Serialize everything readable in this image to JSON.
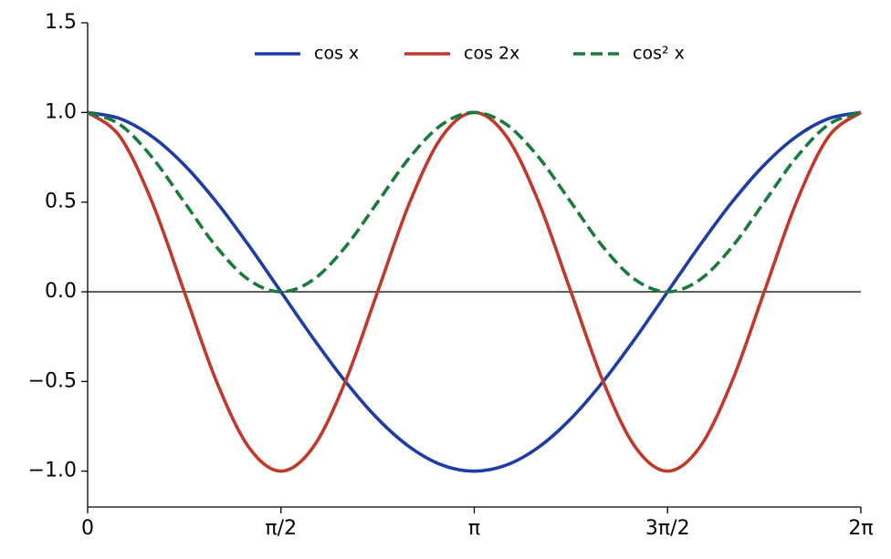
{
  "chart_data": {
    "type": "line",
    "x": [
      0,
      0.2618,
      0.5236,
      0.7854,
      1.0472,
      1.309,
      1.5708,
      1.8326,
      2.0944,
      2.3562,
      2.618,
      2.8798,
      3.1416,
      3.4034,
      3.6652,
      3.927,
      4.1888,
      4.4506,
      4.7124,
      4.9742,
      5.236,
      5.4978,
      5.7596,
      6.0214,
      6.2832
    ],
    "series": [
      {
        "name": "cos x",
        "color": "#1f3ca6",
        "dash": false,
        "values": [
          1,
          0.9659,
          0.866,
          0.7071,
          0.5,
          0.2588,
          0,
          -0.2588,
          -0.5,
          -0.7071,
          -0.866,
          -0.9659,
          -1,
          -0.9659,
          -0.866,
          -0.7071,
          -0.5,
          -0.2588,
          0,
          0.2588,
          0.5,
          0.7071,
          0.866,
          0.9659,
          1
        ]
      },
      {
        "name": "cos 2x",
        "color": "#c0392b",
        "dash": false,
        "values": [
          1,
          0.866,
          0.5,
          0,
          -0.5,
          -0.866,
          -1,
          -0.866,
          -0.5,
          0,
          0.5,
          0.866,
          1,
          0.866,
          0.5,
          0,
          -0.5,
          -0.866,
          -1,
          -0.866,
          -0.5,
          0,
          0.5,
          0.866,
          1
        ]
      },
      {
        "name": "cos² x",
        "color": "#1a7a3c",
        "dash": true,
        "values": [
          1,
          0.933,
          0.75,
          0.5,
          0.25,
          0.067,
          0,
          0.067,
          0.25,
          0.5,
          0.75,
          0.933,
          1,
          0.933,
          0.75,
          0.5,
          0.25,
          0.067,
          0,
          0.067,
          0.25,
          0.5,
          0.75,
          0.933,
          1
        ]
      }
    ],
    "xlim": [
      0,
      6.2832
    ],
    "xticks": [
      0,
      {
        "value": 1.5708,
        "label": "π/2"
      },
      {
        "value": 3.1416,
        "label": "π"
      },
      {
        "value": 4.7124,
        "label": "3π/2"
      },
      {
        "value": 6.2832,
        "label": "2π"
      }
    ],
    "ylim": [
      -1.2,
      1.5
    ],
    "yticks": [
      {
        "value": -1,
        "label": "−1.0"
      },
      {
        "value": -0.5,
        "label": "−0.5"
      },
      {
        "value": 0,
        "label": "0.0"
      },
      0.5,
      {
        "value": 1,
        "label": "1.0"
      },
      1.5
    ],
    "zero_line": true,
    "legend": "upper center"
  }
}
